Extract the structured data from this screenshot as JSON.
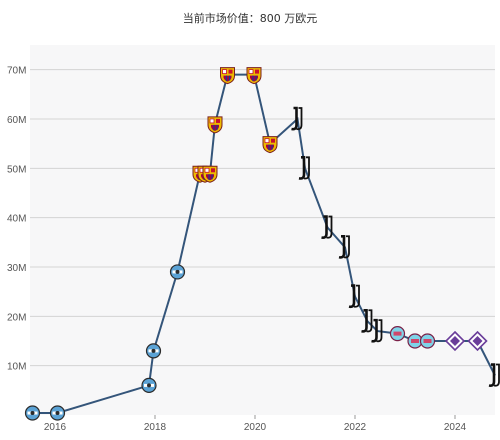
{
  "chart_data": {
    "type": "line",
    "title": "当前市场价值：800 万欧元",
    "xlabel": "",
    "ylabel": "",
    "xlim": [
      2015.5,
      2024.8
    ],
    "ylim": [
      0,
      75
    ],
    "grid": true,
    "y_ticks": [
      {
        "value": 10,
        "label": "10M"
      },
      {
        "value": 20,
        "label": "20M"
      },
      {
        "value": 30,
        "label": "30M"
      },
      {
        "value": 40,
        "label": "40M"
      },
      {
        "value": 50,
        "label": "50M"
      },
      {
        "value": 60,
        "label": "60M"
      },
      {
        "value": 70,
        "label": "70M"
      }
    ],
    "x_ticks": [
      {
        "value": 2016,
        "label": "2016"
      },
      {
        "value": 2018,
        "label": "2018"
      },
      {
        "value": 2020,
        "label": "2020"
      },
      {
        "value": 2022,
        "label": "2022"
      },
      {
        "value": 2024,
        "label": "2024"
      }
    ],
    "club_colors": {
      "gremio": "#5ba3d6",
      "barcelona": "#a50044",
      "juventus": "#111111",
      "aston-villa": "#7fd3e8",
      "fiorentina": "#6a3d9a"
    },
    "line_color": "#34557a",
    "points": [
      {
        "x": 2015.55,
        "y": 0.4,
        "club": "gremio"
      },
      {
        "x": 2016.05,
        "y": 0.4,
        "club": "gremio"
      },
      {
        "x": 2017.88,
        "y": 6,
        "club": "gremio"
      },
      {
        "x": 2017.97,
        "y": 13,
        "club": "gremio"
      },
      {
        "x": 2018.45,
        "y": 29,
        "club": "gremio"
      },
      {
        "x": 2018.9,
        "y": 49,
        "club": "barcelona"
      },
      {
        "x": 2019.0,
        "y": 49,
        "club": "barcelona"
      },
      {
        "x": 2019.1,
        "y": 49,
        "club": "barcelona"
      },
      {
        "x": 2019.2,
        "y": 59,
        "club": "barcelona"
      },
      {
        "x": 2019.45,
        "y": 69,
        "club": "barcelona"
      },
      {
        "x": 2019.98,
        "y": 69,
        "club": "barcelona"
      },
      {
        "x": 2020.3,
        "y": 55,
        "club": "barcelona"
      },
      {
        "x": 2020.85,
        "y": 60,
        "club": "juventus"
      },
      {
        "x": 2021.0,
        "y": 50,
        "club": "juventus"
      },
      {
        "x": 2021.45,
        "y": 38,
        "club": "juventus"
      },
      {
        "x": 2021.8,
        "y": 34,
        "club": "juventus"
      },
      {
        "x": 2022.0,
        "y": 24,
        "club": "juventus"
      },
      {
        "x": 2022.25,
        "y": 19,
        "club": "juventus"
      },
      {
        "x": 2022.45,
        "y": 17,
        "club": "juventus"
      },
      {
        "x": 2022.85,
        "y": 16.5,
        "club": "aston-villa"
      },
      {
        "x": 2023.2,
        "y": 15,
        "club": "aston-villa"
      },
      {
        "x": 2023.45,
        "y": 15,
        "club": "aston-villa"
      },
      {
        "x": 2024.0,
        "y": 15,
        "club": "fiorentina"
      },
      {
        "x": 2024.45,
        "y": 15,
        "club": "fiorentina"
      },
      {
        "x": 2024.8,
        "y": 8,
        "club": "juventus"
      }
    ]
  }
}
